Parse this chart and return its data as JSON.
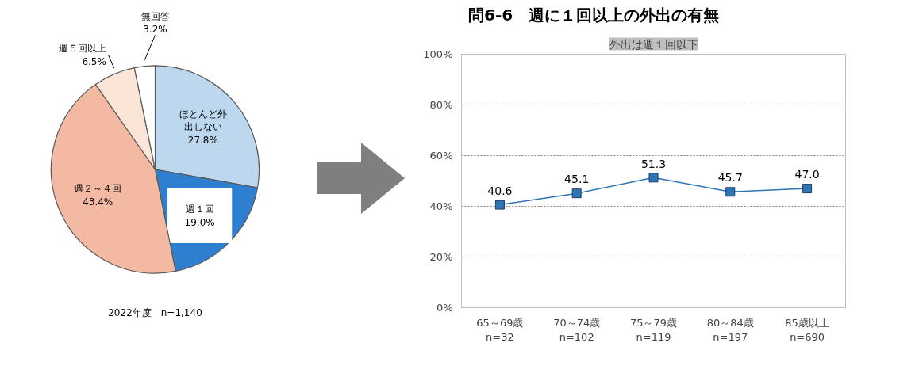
{
  "chart_data": [
    {
      "type": "pie",
      "categories": [
        "ほとんど外出しない",
        "週１回",
        "週２～４回",
        "週５回以上",
        "無回答"
      ],
      "values": [
        27.8,
        19.0,
        43.4,
        6.5,
        3.2
      ],
      "value_labels": [
        "27.8%",
        "19.0%",
        "43.4%",
        "6.5%",
        "3.2%"
      ],
      "colors": [
        "#bdd7ee",
        "#2e7fcf",
        "#f4b9a3",
        "#fbe5d6",
        "#ffffff"
      ],
      "annotations": [
        "2022年度　n=1,140"
      ]
    },
    {
      "type": "line",
      "title": "問6-6　週に１回以上の外出の有無",
      "subtitle": "外出は週１回以下",
      "categories": [
        "65～69歳\nn=32",
        "70～74歳\nn=102",
        "75～79歳\nn=119",
        "80～84歳\nn=197",
        "85歳以上\nn=690"
      ],
      "series": [
        {
          "color": "#2e75b6",
          "values": [
            40.6,
            45.1,
            51.3,
            45.7,
            47.0
          ],
          "value_labels": [
            "40.6",
            "45.1",
            "51.3",
            "45.7",
            "47.0"
          ]
        }
      ],
      "ylim": [
        0,
        100
      ],
      "yticks": [
        {
          "value": 0,
          "label": "0%"
        },
        {
          "value": 20,
          "label": "20%"
        },
        {
          "value": 40,
          "label": "40%"
        },
        {
          "value": 60,
          "label": "60%"
        },
        {
          "value": 80,
          "label": "80%"
        },
        {
          "value": 100,
          "label": "100%"
        }
      ],
      "grid": "y",
      "marker": "square",
      "line_style": "solid"
    }
  ]
}
